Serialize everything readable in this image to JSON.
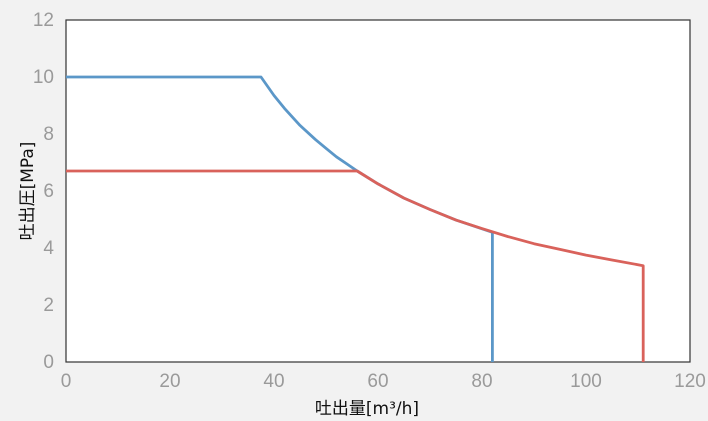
{
  "chart_data": {
    "type": "line",
    "title": "",
    "xlabel": "吐出量[m³/h]",
    "ylabel": "吐出圧[MPa]",
    "xlim": [
      0,
      120
    ],
    "ylim": [
      0,
      12
    ],
    "xticks": [
      0,
      20,
      40,
      60,
      80,
      100,
      120
    ],
    "yticks": [
      0,
      2,
      4,
      6,
      8,
      10,
      12
    ],
    "grid": true,
    "legend": "none",
    "series": [
      {
        "color": "#5b97c8",
        "points": [
          [
            0,
            10
          ],
          [
            37.5,
            10
          ],
          [
            40,
            9.35
          ],
          [
            42,
            8.9
          ],
          [
            45,
            8.3
          ],
          [
            48,
            7.8
          ],
          [
            50,
            7.5
          ],
          [
            52,
            7.2
          ],
          [
            54,
            6.95
          ],
          [
            56,
            6.7
          ],
          [
            60,
            6.25
          ],
          [
            65,
            5.75
          ],
          [
            70,
            5.35
          ],
          [
            75,
            4.98
          ],
          [
            82,
            4.55
          ],
          [
            82,
            0
          ]
        ]
      },
      {
        "color": "#d9625b",
        "points": [
          [
            0,
            6.7
          ],
          [
            56,
            6.7
          ],
          [
            60,
            6.25
          ],
          [
            65,
            5.75
          ],
          [
            70,
            5.35
          ],
          [
            75,
            4.98
          ],
          [
            80,
            4.68
          ],
          [
            85,
            4.4
          ],
          [
            90,
            4.15
          ],
          [
            95,
            3.95
          ],
          [
            100,
            3.75
          ],
          [
            105,
            3.58
          ],
          [
            111,
            3.38
          ],
          [
            111,
            0
          ]
        ]
      }
    ]
  }
}
